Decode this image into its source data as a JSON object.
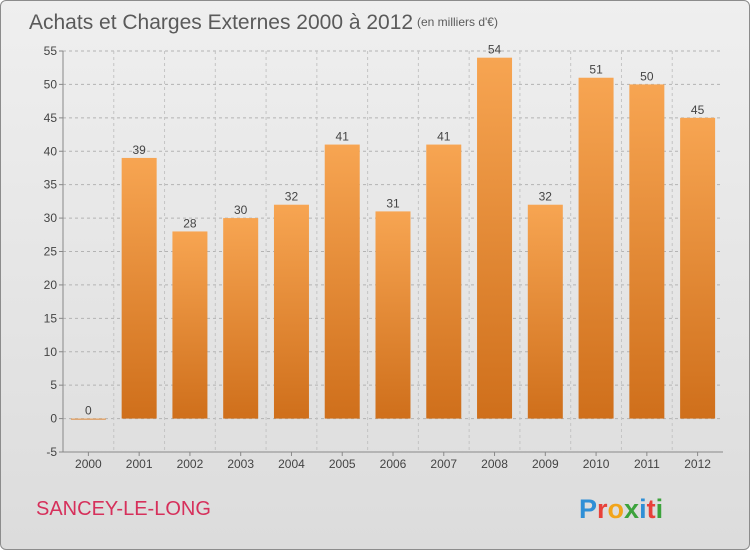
{
  "chart_data": {
    "type": "bar",
    "title": "Achats et Charges Externes 2000 à 2012",
    "subtitle": "(en milliers d'€)",
    "categories": [
      "2000",
      "2001",
      "2002",
      "2003",
      "2004",
      "2005",
      "2006",
      "2007",
      "2008",
      "2009",
      "2010",
      "2011",
      "2012"
    ],
    "values": [
      0,
      39,
      28,
      30,
      32,
      41,
      31,
      41,
      54,
      32,
      51,
      50,
      45
    ],
    "ylim": [
      -5,
      55
    ],
    "yticks": [
      -5,
      0,
      5,
      10,
      15,
      20,
      25,
      30,
      35,
      40,
      45,
      50,
      55
    ],
    "grid": "horizontal-dashed",
    "bar_color_top": "#f7a552",
    "bar_color_bottom": "#cf6f1b"
  },
  "footer": {
    "commune": "SANCEY-LE-LONG",
    "logo_letters": [
      "P",
      "r",
      "o",
      "x",
      "i",
      "t",
      "i"
    ],
    "logo_colors": [
      "#2f8fd6",
      "#e8413a",
      "#f2a51a",
      "#3ca33c",
      "#2f8fd6",
      "#e8413a",
      "#3ca33c"
    ]
  }
}
